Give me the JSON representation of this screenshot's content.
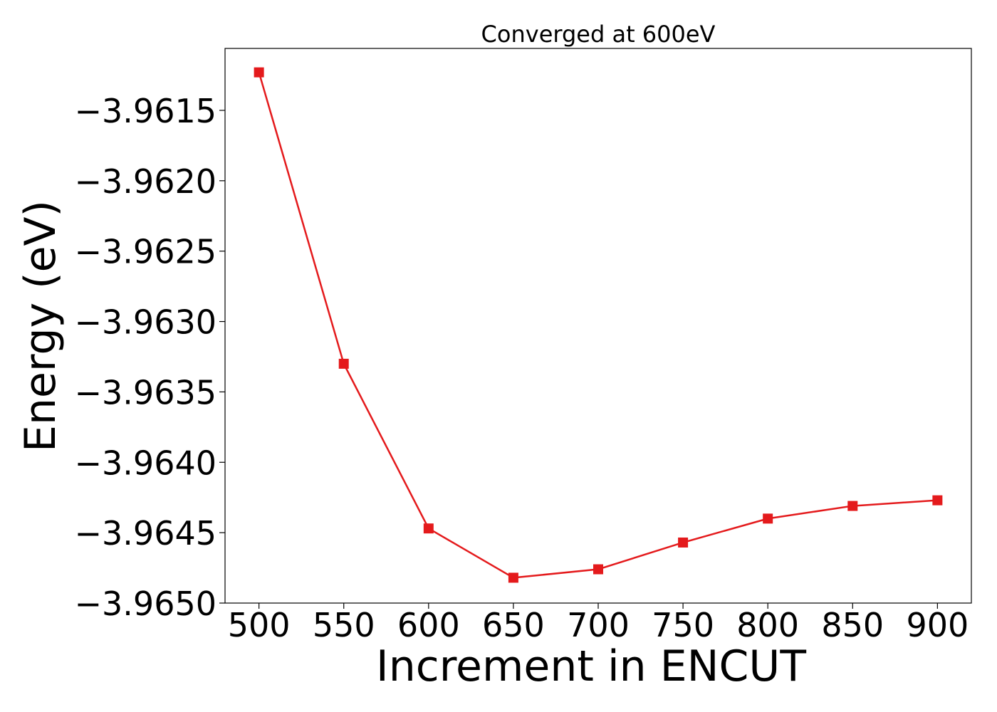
{
  "chart_data": {
    "type": "line",
    "title": "Converged at 600eV",
    "xlabel": "Increment in ENCUT",
    "ylabel": "Energy (eV)",
    "x": [
      500,
      550,
      600,
      650,
      700,
      750,
      800,
      850,
      900
    ],
    "series": [
      {
        "values": [
          -3.96123,
          -3.9633,
          -3.96447,
          -3.96482,
          -3.96476,
          -3.96457,
          -3.9644,
          -3.96431,
          -3.96427
        ],
        "color": "#e41a1c",
        "marker": "square"
      }
    ],
    "xlim": [
      480,
      920
    ],
    "ylim": [
      -3.965,
      -3.96106
    ],
    "xticks": [
      500,
      550,
      600,
      650,
      700,
      750,
      800,
      850,
      900
    ],
    "xtick_labels": [
      "500",
      "550",
      "600",
      "650",
      "700",
      "750",
      "800",
      "850",
      "900"
    ],
    "yticks": [
      -3.965,
      -3.9645,
      -3.964,
      -3.9635,
      -3.963,
      -3.9625,
      -3.962,
      -3.9615
    ],
    "ytick_labels": [
      "−3.9650",
      "−3.9645",
      "−3.9640",
      "−3.9635",
      "−3.9630",
      "−3.9625",
      "−3.9620",
      "−3.9615"
    ],
    "grid": false,
    "legend": false
  }
}
